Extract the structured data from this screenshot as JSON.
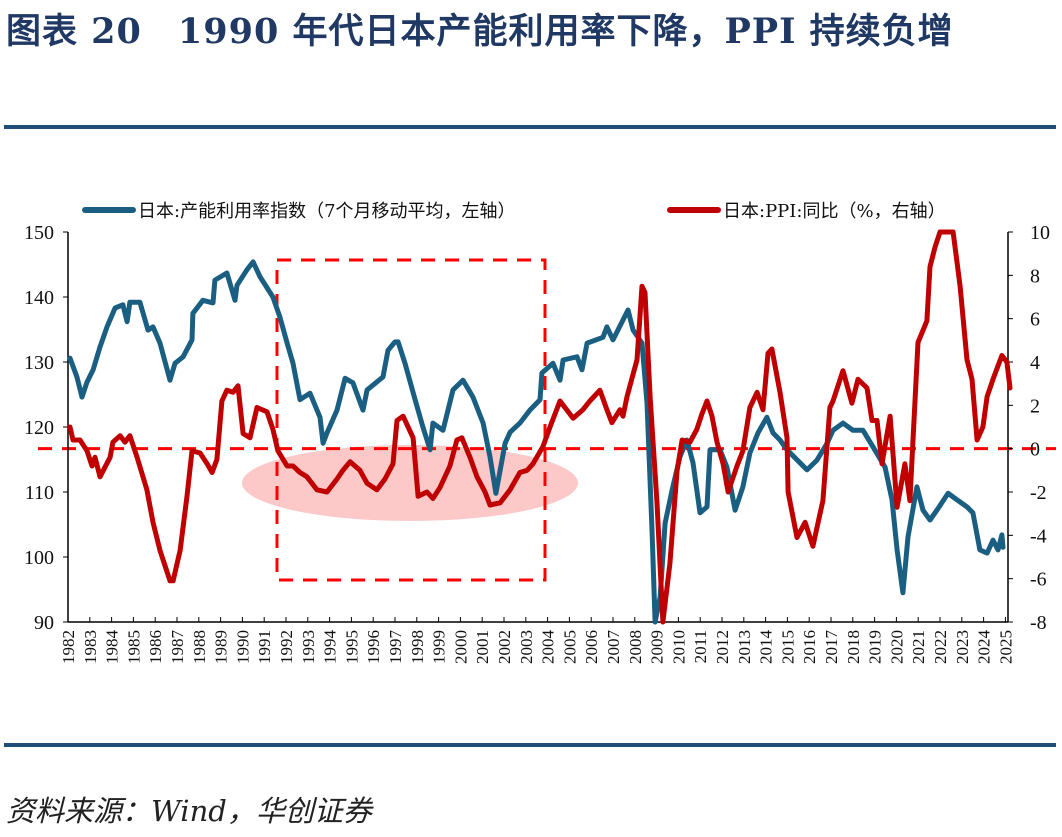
{
  "title": "图表 20　1990 年代日本产能利用率下降，PPI 持续负增",
  "source": "资料来源：Wind，华创证券",
  "colors": {
    "title": "#1f3864",
    "rule": "#1f4e79",
    "series_capacity": "#1a5f82",
    "series_ppi": "#c00000",
    "annotation": "#ff0000",
    "highlight": "#fcc8c8"
  },
  "chart_data": {
    "type": "line",
    "title": "",
    "xlabel": "",
    "ylabel_left": "",
    "ylabel_right": "",
    "x_ticks": [
      "1982",
      "1983",
      "1984",
      "1985",
      "1986",
      "1987",
      "1988",
      "1989",
      "1990",
      "1991",
      "1992",
      "1993",
      "1994",
      "1995",
      "1996",
      "1997",
      "1998",
      "1999",
      "2000",
      "2001",
      "2002",
      "2003",
      "2004",
      "2005",
      "2006",
      "2007",
      "2008",
      "2009",
      "2010",
      "2011",
      "2012",
      "2013",
      "2014",
      "2015",
      "2016",
      "2017",
      "2018",
      "2019",
      "2020",
      "2021",
      "2022",
      "2023",
      "2024",
      "2025"
    ],
    "xlim": [
      1982,
      2025.1
    ],
    "ylim_left": [
      90,
      150
    ],
    "y_ticks_left": [
      "150",
      "140",
      "130",
      "120",
      "110",
      "100",
      "90"
    ],
    "ylim_right": [
      -8,
      10
    ],
    "y_ticks_right": [
      "10",
      "8",
      "6",
      "4",
      "2",
      "0",
      "-2",
      "-4",
      "-6",
      "-8"
    ],
    "grid": false,
    "legend_position": "top",
    "reference_line_right": 0,
    "series": [
      {
        "name": "日本:产能利用率指数（7个月移动平均，左轴）",
        "axis": "left",
        "color": "#1a5f82",
        "points": [
          [
            1982.09,
            130.6
          ],
          [
            1982.41,
            127.7
          ],
          [
            1982.64,
            124.6
          ],
          [
            1982.87,
            126.9
          ],
          [
            1983.15,
            128.8
          ],
          [
            1983.47,
            132.3
          ],
          [
            1983.79,
            135.4
          ],
          [
            1984.16,
            138.3
          ],
          [
            1984.52,
            138.8
          ],
          [
            1984.71,
            136.2
          ],
          [
            1984.84,
            139.2
          ],
          [
            1985.3,
            139.2
          ],
          [
            1985.67,
            134.9
          ],
          [
            1985.9,
            135.4
          ],
          [
            1986.22,
            132.9
          ],
          [
            1986.68,
            127.2
          ],
          [
            1986.91,
            129.8
          ],
          [
            1987.28,
            130.8
          ],
          [
            1987.69,
            133.4
          ],
          [
            1987.73,
            137.5
          ],
          [
            1988.19,
            139.5
          ],
          [
            1988.65,
            139.1
          ],
          [
            1988.74,
            142.6
          ],
          [
            1989.29,
            143.7
          ],
          [
            1989.66,
            139.5
          ],
          [
            1989.75,
            141.8
          ],
          [
            1990.21,
            144.2
          ],
          [
            1990.49,
            145.4
          ],
          [
            1990.81,
            143.1
          ],
          [
            1991.4,
            140.0
          ],
          [
            1991.72,
            136.9
          ],
          [
            1992.05,
            132.9
          ],
          [
            1992.32,
            129.8
          ],
          [
            1992.64,
            124.2
          ],
          [
            1993.1,
            125.2
          ],
          [
            1993.56,
            121.5
          ],
          [
            1993.7,
            117.5
          ],
          [
            1993.88,
            119.1
          ],
          [
            1994.34,
            122.6
          ],
          [
            1994.71,
            127.5
          ],
          [
            1995.07,
            126.8
          ],
          [
            1995.53,
            122.6
          ],
          [
            1995.72,
            125.7
          ],
          [
            1996.45,
            127.7
          ],
          [
            1996.68,
            131.8
          ],
          [
            1997.0,
            133.1
          ],
          [
            1997.14,
            133.1
          ],
          [
            1997.46,
            129.8
          ],
          [
            1997.92,
            124.2
          ],
          [
            1998.28,
            120.0
          ],
          [
            1998.61,
            116.5
          ],
          [
            1998.74,
            120.6
          ],
          [
            1999.2,
            119.5
          ],
          [
            1999.66,
            125.7
          ],
          [
            2000.12,
            127.2
          ],
          [
            2000.58,
            124.6
          ],
          [
            2001.04,
            120.6
          ],
          [
            2001.36,
            115.4
          ],
          [
            2001.63,
            109.8
          ],
          [
            2002.05,
            117.5
          ],
          [
            2002.28,
            119.2
          ],
          [
            2002.73,
            120.6
          ],
          [
            2003.19,
            122.6
          ],
          [
            2003.65,
            124.2
          ],
          [
            2003.74,
            128.3
          ],
          [
            2004.25,
            129.8
          ],
          [
            2004.57,
            127.2
          ],
          [
            2004.71,
            130.3
          ],
          [
            2005.35,
            130.8
          ],
          [
            2005.58,
            128.8
          ],
          [
            2005.81,
            132.9
          ],
          [
            2006.54,
            133.8
          ],
          [
            2006.72,
            135.4
          ],
          [
            2007.0,
            133.4
          ],
          [
            2007.69,
            138.0
          ],
          [
            2007.92,
            134.9
          ],
          [
            2008.33,
            132.9
          ],
          [
            2008.56,
            123.7
          ],
          [
            2008.79,
            104.2
          ],
          [
            2008.93,
            90.0
          ],
          [
            2009.16,
            93.8
          ],
          [
            2009.39,
            105.2
          ],
          [
            2009.71,
            110.3
          ],
          [
            2010.07,
            115.4
          ],
          [
            2010.39,
            118.0
          ],
          [
            2010.67,
            114.5
          ],
          [
            2010.99,
            106.8
          ],
          [
            2011.31,
            107.7
          ],
          [
            2011.45,
            116.5
          ],
          [
            2011.91,
            116.5
          ],
          [
            2012.23,
            113.8
          ],
          [
            2012.6,
            107.2
          ],
          [
            2012.96,
            110.8
          ],
          [
            2013.28,
            116.0
          ],
          [
            2013.65,
            119.1
          ],
          [
            2014.06,
            121.5
          ],
          [
            2014.34,
            119.1
          ],
          [
            2014.66,
            118.0
          ],
          [
            2014.98,
            116.5
          ],
          [
            2015.58,
            114.5
          ],
          [
            2015.9,
            113.4
          ],
          [
            2016.36,
            114.9
          ],
          [
            2016.82,
            117.5
          ],
          [
            2017.09,
            119.5
          ],
          [
            2017.55,
            120.6
          ],
          [
            2018.01,
            119.5
          ],
          [
            2018.47,
            119.5
          ],
          [
            2018.93,
            116.9
          ],
          [
            2019.48,
            113.8
          ],
          [
            2019.8,
            108.8
          ],
          [
            2020.03,
            101.1
          ],
          [
            2020.3,
            94.5
          ],
          [
            2020.53,
            103.1
          ],
          [
            2020.94,
            110.8
          ],
          [
            2021.22,
            107.2
          ],
          [
            2021.54,
            105.7
          ],
          [
            2021.86,
            107.2
          ],
          [
            2022.37,
            109.8
          ],
          [
            2022.78,
            108.8
          ],
          [
            2023.24,
            107.7
          ],
          [
            2023.51,
            106.8
          ],
          [
            2023.83,
            101.1
          ],
          [
            2024.16,
            100.6
          ],
          [
            2024.43,
            102.6
          ],
          [
            2024.66,
            101.1
          ],
          [
            2024.84,
            103.4
          ],
          [
            2024.89,
            101.5
          ]
        ]
      },
      {
        "name": "日本:PPI:同比（%，右轴）",
        "axis": "right",
        "color": "#c00000",
        "points": [
          [
            1982.09,
            1.0
          ],
          [
            1982.23,
            0.4
          ],
          [
            1982.55,
            0.4
          ],
          [
            1982.87,
            -0.1
          ],
          [
            1983.1,
            -0.8
          ],
          [
            1983.24,
            -0.4
          ],
          [
            1983.47,
            -1.3
          ],
          [
            1983.93,
            -0.4
          ],
          [
            1984.06,
            0.3
          ],
          [
            1984.39,
            0.6
          ],
          [
            1984.61,
            0.3
          ],
          [
            1984.84,
            0.6
          ],
          [
            1985.17,
            -0.4
          ],
          [
            1985.62,
            -1.9
          ],
          [
            1985.9,
            -3.4
          ],
          [
            1986.22,
            -4.7
          ],
          [
            1986.68,
            -6.1
          ],
          [
            1986.82,
            -6.1
          ],
          [
            1987.14,
            -4.7
          ],
          [
            1987.46,
            -2.2
          ],
          [
            1987.69,
            -0.1
          ],
          [
            1988.06,
            -0.2
          ],
          [
            1988.38,
            -0.7
          ],
          [
            1988.61,
            -1.1
          ],
          [
            1988.83,
            -0.5
          ],
          [
            1989.06,
            2.2
          ],
          [
            1989.29,
            2.7
          ],
          [
            1989.57,
            2.6
          ],
          [
            1989.8,
            2.9
          ],
          [
            1990.03,
            0.7
          ],
          [
            1990.35,
            0.5
          ],
          [
            1990.67,
            1.9
          ],
          [
            1991.13,
            1.7
          ],
          [
            1991.4,
            0.9
          ],
          [
            1991.63,
            -0.1
          ],
          [
            1992.05,
            -0.8
          ],
          [
            1992.32,
            -0.8
          ],
          [
            1992.64,
            -1.1
          ],
          [
            1992.96,
            -1.3
          ],
          [
            1993.42,
            -1.9
          ],
          [
            1993.88,
            -2.0
          ],
          [
            1994.34,
            -1.4
          ],
          [
            1994.61,
            -1.0
          ],
          [
            1994.94,
            -0.6
          ],
          [
            1995.39,
            -1.0
          ],
          [
            1995.72,
            -1.6
          ],
          [
            1996.17,
            -1.9
          ],
          [
            1996.54,
            -1.4
          ],
          [
            1996.91,
            -0.7
          ],
          [
            1997.09,
            1.3
          ],
          [
            1997.37,
            1.5
          ],
          [
            1997.83,
            0.5
          ],
          [
            1998.06,
            -2.2
          ],
          [
            1998.47,
            -2.0
          ],
          [
            1998.74,
            -2.3
          ],
          [
            1999.06,
            -1.8
          ],
          [
            1999.52,
            -0.8
          ],
          [
            1999.84,
            0.4
          ],
          [
            2000.07,
            0.5
          ],
          [
            2000.44,
            -0.4
          ],
          [
            2000.76,
            -1.3
          ],
          [
            2001.13,
            -2.0
          ],
          [
            2001.36,
            -2.6
          ],
          [
            2001.82,
            -2.5
          ],
          [
            2002.28,
            -1.9
          ],
          [
            2002.73,
            -1.1
          ],
          [
            2003.06,
            -1.0
          ],
          [
            2003.33,
            -0.7
          ],
          [
            2003.79,
            0.1
          ],
          [
            2004.11,
            1.0
          ],
          [
            2004.57,
            2.2
          ],
          [
            2005.17,
            1.4
          ],
          [
            2005.62,
            1.8
          ],
          [
            2005.94,
            2.2
          ],
          [
            2006.4,
            2.7
          ],
          [
            2006.72,
            1.8
          ],
          [
            2006.95,
            1.2
          ],
          [
            2007.32,
            1.8
          ],
          [
            2007.46,
            1.5
          ],
          [
            2007.64,
            2.4
          ],
          [
            2008.1,
            4.1
          ],
          [
            2008.33,
            7.5
          ],
          [
            2008.47,
            7.2
          ],
          [
            2008.7,
            2.4
          ],
          [
            2009.02,
            -2.5
          ],
          [
            2009.29,
            -8.0
          ],
          [
            2009.61,
            -5.3
          ],
          [
            2009.94,
            -1.0
          ],
          [
            2010.17,
            0.4
          ],
          [
            2010.53,
            0.3
          ],
          [
            2010.85,
            0.9
          ],
          [
            2011.08,
            1.6
          ],
          [
            2011.31,
            2.2
          ],
          [
            2011.54,
            1.5
          ],
          [
            2011.77,
            0.3
          ],
          [
            2012.05,
            -0.7
          ],
          [
            2012.28,
            -2.0
          ],
          [
            2012.69,
            -0.8
          ],
          [
            2012.96,
            -0.1
          ],
          [
            2013.28,
            1.9
          ],
          [
            2013.61,
            2.6
          ],
          [
            2013.88,
            1.8
          ],
          [
            2014.11,
            4.4
          ],
          [
            2014.29,
            4.6
          ],
          [
            2014.66,
            2.6
          ],
          [
            2014.98,
            0.5
          ],
          [
            2015.03,
            -2.0
          ],
          [
            2015.44,
            -4.1
          ],
          [
            2015.81,
            -3.4
          ],
          [
            2016.17,
            -4.5
          ],
          [
            2016.63,
            -2.4
          ],
          [
            2016.95,
            1.9
          ],
          [
            2017.09,
            2.2
          ],
          [
            2017.55,
            3.6
          ],
          [
            2017.96,
            2.1
          ],
          [
            2018.24,
            3.2
          ],
          [
            2018.65,
            2.8
          ],
          [
            2018.88,
            1.3
          ],
          [
            2019.11,
            1.3
          ],
          [
            2019.34,
            -0.7
          ],
          [
            2019.71,
            1.5
          ],
          [
            2020.03,
            -2.7
          ],
          [
            2020.39,
            -0.7
          ],
          [
            2020.62,
            -2.4
          ],
          [
            2020.99,
            4.9
          ],
          [
            2021.4,
            5.9
          ],
          [
            2021.54,
            8.4
          ],
          [
            2021.77,
            9.3
          ],
          [
            2022.0,
            10.0
          ],
          [
            2022.6,
            10.0
          ],
          [
            2022.92,
            7.5
          ],
          [
            2023.24,
            4.1
          ],
          [
            2023.47,
            3.2
          ],
          [
            2023.7,
            0.4
          ],
          [
            2023.97,
            1.0
          ],
          [
            2024.16,
            2.4
          ],
          [
            2024.43,
            3.2
          ],
          [
            2024.84,
            4.3
          ],
          [
            2025.07,
            4.0
          ],
          [
            2025.21,
            2.8
          ]
        ]
      }
    ]
  }
}
